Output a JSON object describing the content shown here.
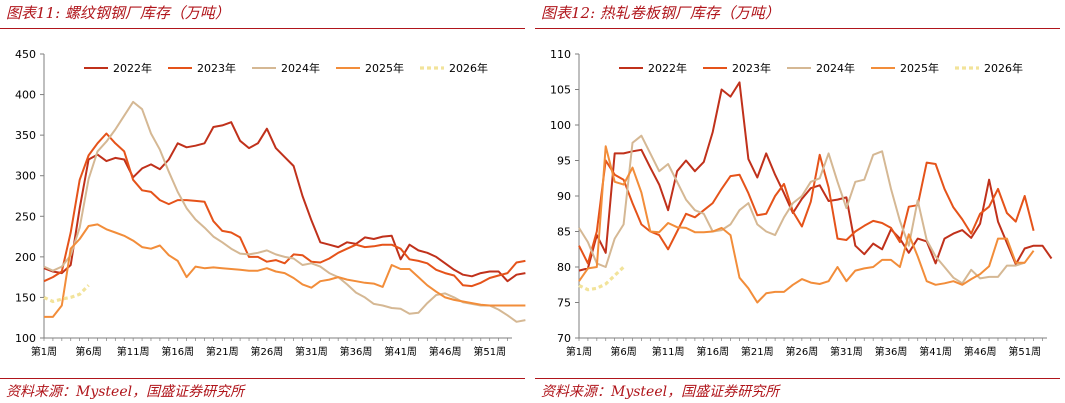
{
  "panels": [
    {
      "title": "图表11:  螺纹钢钢厂库存（万吨）",
      "source": "资料来源：Mysteel，国盛证券研究所"
    },
    {
      "title": "图表12:  热轧卷板钢厂库存（万吨）",
      "source": "资料来源：Mysteel，国盛证券研究所"
    }
  ],
  "chart_data": [
    {
      "type": "line",
      "ylim": [
        100,
        450
      ],
      "yticks": [
        100,
        150,
        200,
        250,
        300,
        350,
        400,
        450
      ],
      "xticks": [
        "第1周",
        "第6周",
        "第11周",
        "第16周",
        "第21周",
        "第26周",
        "第31周",
        "第36周",
        "第41周",
        "第46周",
        "第51周"
      ],
      "legend_position": "top",
      "series": [
        {
          "name": "2022年",
          "color": "#c0311b",
          "values": [
            186,
            182,
            180,
            190,
            260,
            320,
            326,
            318,
            322,
            320,
            298,
            309,
            314,
            308,
            320,
            340,
            335,
            337,
            340,
            360,
            362,
            366,
            343,
            334,
            340,
            358,
            334,
            323,
            312,
            275,
            245,
            218,
            215,
            212,
            218,
            216,
            224,
            222,
            225,
            226,
            197,
            215,
            208,
            205,
            200,
            192,
            184,
            178,
            176,
            180,
            182,
            182,
            170,
            178,
            180
          ]
        },
        {
          "name": "2023年",
          "color": "#e5531a",
          "values": [
            170,
            175,
            182,
            230,
            295,
            325,
            340,
            352,
            340,
            330,
            295,
            282,
            280,
            270,
            265,
            270,
            270,
            269,
            268,
            244,
            232,
            230,
            224,
            200,
            200,
            194,
            196,
            192,
            203,
            202,
            194,
            193,
            198,
            205,
            210,
            215,
            212,
            213,
            215,
            215,
            210,
            197,
            195,
            192,
            184,
            180,
            177,
            165,
            164,
            168,
            174,
            177,
            180,
            193,
            195
          ]
        },
        {
          "name": "2024年",
          "color": "#d5b894",
          "values": [
            188,
            183,
            188,
            202,
            236,
            296,
            330,
            342,
            357,
            374,
            391,
            382,
            352,
            332,
            305,
            280,
            260,
            246,
            236,
            225,
            218,
            210,
            204,
            203,
            205,
            208,
            203,
            200,
            198,
            190,
            192,
            188,
            180,
            175,
            166,
            156,
            150,
            142,
            140,
            137,
            136,
            130,
            131,
            143,
            153,
            155,
            150,
            144,
            142,
            140,
            140,
            135,
            128,
            120,
            122
          ]
        },
        {
          "name": "2025年",
          "color": "#f28d3a",
          "values": [
            126,
            126,
            140,
            210,
            222,
            238,
            240,
            234,
            230,
            226,
            220,
            212,
            210,
            214,
            202,
            195,
            175,
            188,
            186,
            187,
            186,
            185,
            184,
            183,
            183,
            186,
            182,
            180,
            174,
            166,
            162,
            170,
            172,
            175,
            172,
            170,
            168,
            167,
            163,
            190,
            185,
            185,
            175,
            165,
            157,
            150,
            147,
            145,
            143,
            141,
            140,
            140,
            140,
            140,
            140
          ]
        },
        {
          "name": "2026年",
          "color": "#f2e39a",
          "values": [
            150,
            145,
            148,
            150,
            154,
            165
          ]
        }
      ]
    },
    {
      "type": "line",
      "ylim": [
        70,
        110
      ],
      "yticks": [
        70,
        75,
        80,
        85,
        90,
        95,
        100,
        105,
        110
      ],
      "xticks": [
        "第1周",
        "第6周",
        "第11周",
        "第16周",
        "第21周",
        "第26周",
        "第31周",
        "第36周",
        "第41周",
        "第46周",
        "第51周"
      ],
      "legend_position": "top",
      "series": [
        {
          "name": "2022年",
          "color": "#c0311b",
          "values": [
            79.5,
            79.8,
            84.5,
            82,
            96,
            96,
            96.3,
            96.5,
            94,
            91.6,
            88,
            93.5,
            95,
            93.5,
            94.8,
            99,
            105,
            104,
            106,
            95.2,
            92.6,
            96,
            93,
            90.4,
            87.6,
            89.6,
            91.1,
            91.5,
            89.3,
            89.5,
            89.8,
            83,
            81.8,
            83.3,
            82.5,
            85.3,
            84,
            82,
            84,
            83.6,
            80.5,
            84,
            84.7,
            85.2,
            84.1,
            86.1,
            92.3,
            86.4,
            83.4,
            80.4,
            82.6,
            83,
            83,
            81.2
          ]
        },
        {
          "name": "2023年",
          "color": "#e5531a",
          "values": [
            83,
            80.5,
            85,
            95,
            93,
            92.3,
            89,
            86,
            85,
            84.5,
            82.5,
            85,
            87.5,
            87,
            88,
            89,
            91,
            92.8,
            93,
            90.4,
            87.3,
            87.5,
            90,
            91.7,
            87.8,
            85.7,
            89.2,
            95.8,
            91.2,
            84,
            83.8,
            85,
            85.8,
            86.5,
            86.2,
            85.5,
            83.5,
            88.5,
            88.7,
            94.7,
            94.5,
            91,
            88.4,
            86.7,
            84.7,
            87.5,
            88.5,
            91,
            87.6,
            86.4,
            90,
            85.1
          ]
        },
        {
          "name": "2024年",
          "color": "#d5b894",
          "values": [
            85.5,
            83.5,
            80.5,
            80,
            84,
            86,
            97.5,
            98.5,
            96,
            93.5,
            94.5,
            92,
            89.5,
            88,
            87.5,
            85,
            85.2,
            86,
            88,
            89,
            86,
            85,
            84.5,
            87,
            89,
            90,
            92,
            92.5,
            96,
            92,
            88.3,
            92,
            92.3,
            95.8,
            96.3,
            91,
            86.5,
            83,
            89.4,
            83.8,
            81.5,
            80,
            78.5,
            77.7,
            79.6,
            78.4,
            78.6,
            78.6,
            80.2,
            80.2,
            80.6
          ]
        },
        {
          "name": "2025年",
          "color": "#f28d3a",
          "values": [
            78,
            79.8,
            80,
            97,
            92,
            91.6,
            94,
            90.5,
            85,
            84.9,
            86.2,
            85.6,
            85.5,
            84.9,
            84.9,
            85,
            85.5,
            84.5,
            78.5,
            77,
            75,
            76.3,
            76.5,
            76.5,
            77.5,
            78.3,
            77.8,
            77.6,
            78,
            80,
            78,
            79.5,
            79.8,
            80,
            81,
            81,
            80,
            84.6,
            81.5,
            78,
            77.5,
            77.7,
            78,
            77.5,
            78.3,
            79,
            80.1,
            84,
            84,
            80.6,
            80.6,
            82.3
          ]
        },
        {
          "name": "2026年",
          "color": "#f2e39a",
          "values": [
            77.4,
            76.8,
            77,
            77.6,
            78.8,
            80
          ]
        }
      ]
    }
  ]
}
